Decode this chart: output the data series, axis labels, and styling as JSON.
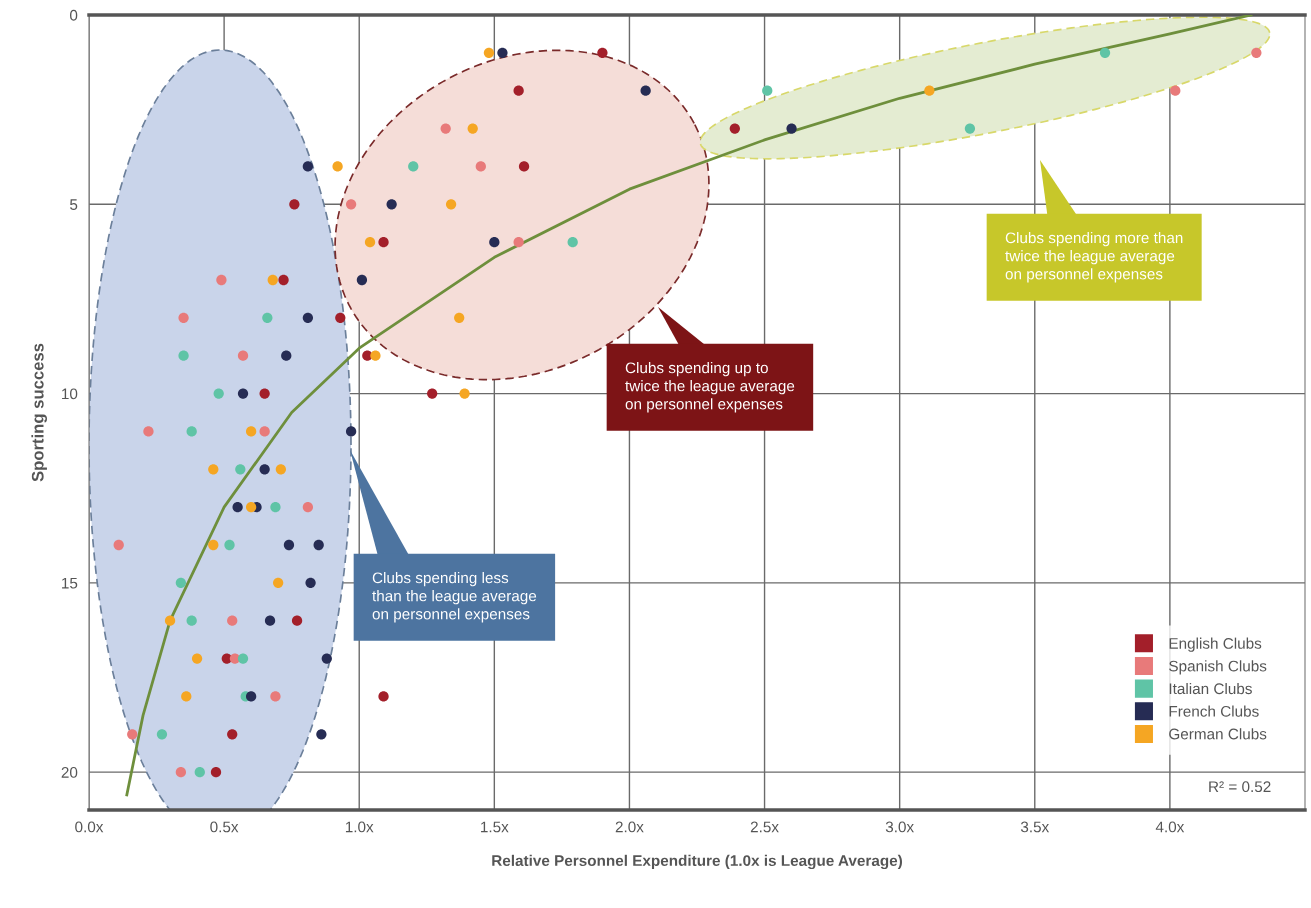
{
  "chart_data": {
    "type": "scatter",
    "xlabel": "Relative Personnel Expenditure (1.0x is League Average)",
    "ylabel": "Sporting success",
    "xlim": [
      0,
      4.5
    ],
    "ylim": [
      21,
      0
    ],
    "xticks": [
      {
        "value": 0,
        "label": "0.0x"
      },
      {
        "value": 0.5,
        "label": "0.5x"
      },
      {
        "value": 1.0,
        "label": "1.0x"
      },
      {
        "value": 1.5,
        "label": "1.5x"
      },
      {
        "value": 2.0,
        "label": "2.0x"
      },
      {
        "value": 2.5,
        "label": "2.5x"
      },
      {
        "value": 3.0,
        "label": "3.0x"
      },
      {
        "value": 3.5,
        "label": "3.5x"
      },
      {
        "value": 4.0,
        "label": "4.0x"
      }
    ],
    "yticks": [
      0,
      5,
      10,
      15,
      20
    ],
    "grid": true,
    "legend": "bottom right",
    "marker": "circle",
    "series": [
      {
        "name": "English Clubs",
        "color": "#a31f2a",
        "x": [
          1.9,
          1.59,
          1.61,
          2.39,
          0.76,
          1.09,
          0.72,
          0.93,
          1.03,
          0.65,
          1.27,
          0.77,
          0.51,
          1.09,
          0.53,
          0.47
        ],
        "values": [
          1,
          2,
          4,
          3,
          5,
          6,
          7,
          8,
          9,
          10,
          10,
          16,
          17,
          18,
          19,
          20
        ]
      },
      {
        "name": "Spanish Clubs",
        "color": "#e87a7a",
        "x": [
          4.32,
          4.02,
          1.32,
          1.45,
          0.97,
          1.59,
          0.49,
          0.35,
          0.57,
          0.22,
          0.65,
          0.81,
          0.11,
          0.53,
          0.54,
          0.69,
          0.16,
          0.34
        ],
        "values": [
          1,
          2,
          3,
          4,
          5,
          6,
          7,
          8,
          9,
          11,
          11,
          13,
          14,
          16,
          17,
          18,
          19,
          20
        ]
      },
      {
        "name": "Italian Clubs",
        "color": "#5fc4a6",
        "x": [
          3.76,
          2.51,
          3.26,
          1.2,
          1.79,
          0.66,
          0.35,
          0.48,
          0.38,
          0.56,
          0.69,
          0.52,
          0.34,
          0.38,
          0.57,
          0.58,
          0.27,
          0.41
        ],
        "values": [
          1,
          2,
          3,
          4,
          6,
          8,
          9,
          10,
          11,
          12,
          13,
          14,
          15,
          16,
          17,
          18,
          19,
          20
        ]
      },
      {
        "name": "French Clubs",
        "color": "#262c54",
        "x": [
          1.53,
          2.06,
          2.6,
          0.81,
          1.12,
          1.5,
          1.01,
          0.81,
          0.73,
          0.57,
          0.97,
          0.65,
          0.55,
          0.62,
          0.74,
          0.85,
          0.82,
          0.67,
          0.88,
          0.6,
          0.86
        ],
        "values": [
          1,
          2,
          3,
          4,
          5,
          6,
          7,
          8,
          9,
          10,
          11,
          12,
          13,
          13,
          14,
          14,
          15,
          16,
          17,
          18,
          19
        ]
      },
      {
        "name": "German Clubs",
        "color": "#f5a623",
        "x": [
          1.48,
          3.11,
          1.42,
          0.92,
          1.34,
          1.04,
          0.68,
          1.37,
          1.06,
          1.39,
          0.6,
          0.46,
          0.71,
          0.6,
          0.46,
          0.7,
          0.3,
          0.4,
          0.36
        ],
        "values": [
          1,
          2,
          3,
          4,
          5,
          6,
          7,
          8,
          9,
          10,
          11,
          12,
          12,
          13,
          14,
          15,
          16,
          17,
          18
        ]
      },
      {
        "type": "line",
        "marker": "none",
        "color": "#6e8f3c",
        "x": [
          0.14,
          0.2,
          0.3,
          0.5,
          0.75,
          1.0,
          1.5,
          2.0,
          2.5,
          3.0,
          3.5,
          4.0,
          4.3
        ],
        "values": [
          20.6,
          18.5,
          16.0,
          13.0,
          10.5,
          8.8,
          6.4,
          4.6,
          3.3,
          2.2,
          1.3,
          0.5,
          0.0
        ]
      }
    ],
    "annotations": [
      "Clubs spending less\nthan the league average\non personnel expenses",
      "Clubs spending up to\ntwice the league average\non personnel expenses",
      "Clubs spending more than\ntwice the league average\non personnel expenses",
      "R² = 0.52"
    ]
  }
}
